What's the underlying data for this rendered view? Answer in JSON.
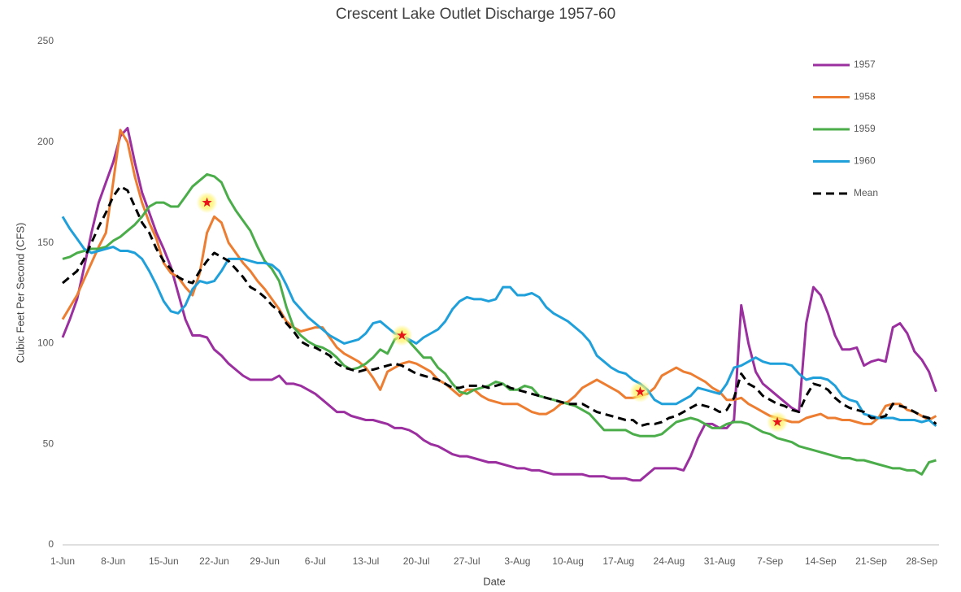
{
  "chart_data": {
    "type": "line",
    "title": "Crescent Lake Outlet Discharge 1957-60",
    "x_label": "Date",
    "y_label": "Cubic Feet Per Second (CFS)",
    "categories": [
      "1-Jun",
      null,
      null,
      null,
      null,
      null,
      null,
      "8-Jun",
      null,
      null,
      null,
      null,
      null,
      null,
      "15-Jun",
      null,
      null,
      null,
      null,
      null,
      null,
      "22-Jun",
      null,
      null,
      null,
      null,
      null,
      null,
      "29-Jun",
      null,
      null,
      null,
      null,
      null,
      null,
      "6-Jul",
      null,
      null,
      null,
      null,
      null,
      null,
      "13-Jul",
      null,
      null,
      null,
      null,
      null,
      null,
      "20-Jul",
      null,
      null,
      null,
      null,
      null,
      null,
      "27-Jul",
      null,
      null,
      null,
      null,
      null,
      null,
      "3-Aug",
      null,
      null,
      null,
      null,
      null,
      null,
      "10-Aug",
      null,
      null,
      null,
      null,
      null,
      null,
      "17-Aug",
      null,
      null,
      null,
      null,
      null,
      null,
      "24-Aug",
      null,
      null,
      null,
      null,
      null,
      null,
      "31-Aug",
      null,
      null,
      null,
      null,
      null,
      null,
      "7-Sep",
      null,
      null,
      null,
      null,
      null,
      null,
      "14-Sep",
      null,
      null,
      null,
      null,
      null,
      null,
      "21-Sep",
      null,
      null,
      null,
      null,
      null,
      null,
      "28-Sep",
      null,
      null
    ],
    "series": [
      {
        "name": "1957",
        "color": "#9b2fa0",
        "values": [
          103,
          112,
          122,
          138,
          155,
          170,
          180,
          190,
          203,
          207,
          190,
          175,
          165,
          155,
          147,
          138,
          125,
          112,
          104,
          104,
          103,
          97,
          94,
          90,
          87,
          84,
          82,
          82,
          82,
          82,
          84,
          80,
          80,
          79,
          77,
          75,
          72,
          69,
          66,
          66,
          64,
          63,
          62,
          62,
          61,
          60,
          58,
          58,
          57,
          55,
          52,
          50,
          49,
          47,
          45,
          44,
          44,
          43,
          42,
          41,
          41,
          40,
          39,
          38,
          38,
          37,
          37,
          36,
          35,
          35,
          35,
          35,
          35,
          34,
          34,
          34,
          33,
          33,
          33,
          32,
          32,
          35,
          38,
          38,
          38,
          38,
          37,
          44,
          53,
          60,
          60,
          58,
          58,
          62,
          119,
          100,
          86,
          80,
          77,
          74,
          71,
          68,
          66,
          110,
          128,
          124,
          115,
          104,
          97,
          97,
          98,
          89,
          91,
          92,
          91,
          108,
          110,
          105,
          96,
          92,
          86,
          76
        ]
      },
      {
        "name": "1958",
        "color": "#ed7d31",
        "values": [
          112,
          118,
          124,
          132,
          140,
          148,
          155,
          180,
          206,
          200,
          183,
          170,
          160,
          152,
          140,
          135,
          133,
          128,
          124,
          135,
          155,
          163,
          160,
          150,
          145,
          140,
          136,
          131,
          127,
          122,
          117,
          111,
          108,
          106,
          107,
          108,
          108,
          103,
          98,
          95,
          93,
          91,
          88,
          83,
          77,
          86,
          88,
          90,
          91,
          90,
          88,
          86,
          82,
          80,
          77,
          74,
          77,
          77,
          74,
          72,
          71,
          70,
          70,
          70,
          68,
          66,
          65,
          65,
          67,
          70,
          71,
          74,
          78,
          80,
          82,
          80,
          78,
          76,
          73,
          73,
          74,
          75,
          78,
          84,
          86,
          88,
          86,
          85,
          83,
          81,
          78,
          76,
          72,
          72,
          73,
          70,
          68,
          66,
          64,
          63,
          62,
          61,
          61,
          63,
          64,
          65,
          63,
          63,
          62,
          62,
          61,
          60,
          60,
          63,
          69,
          70,
          70,
          67,
          66,
          64,
          62,
          64
        ]
      },
      {
        "name": "1959",
        "color": "#4aad4a",
        "values": [
          142,
          143,
          145,
          146,
          147,
          147,
          148,
          151,
          153,
          156,
          159,
          163,
          168,
          170,
          170,
          168,
          168,
          173,
          178,
          181,
          184,
          183,
          180,
          172,
          166,
          161,
          156,
          148,
          141,
          137,
          131,
          118,
          108,
          104,
          101,
          99,
          98,
          96,
          93,
          89,
          87,
          88,
          90,
          93,
          97,
          95,
          102,
          104,
          101,
          97,
          93,
          93,
          88,
          85,
          80,
          76,
          75,
          77,
          78,
          79,
          81,
          80,
          77,
          77,
          79,
          78,
          74,
          73,
          72,
          71,
          70,
          69,
          67,
          65,
          61,
          57,
          57,
          57,
          57,
          55,
          54,
          54,
          54,
          55,
          58,
          61,
          62,
          63,
          62,
          60,
          58,
          58,
          60,
          61,
          61,
          60,
          58,
          56,
          55,
          53,
          52,
          51,
          49,
          48,
          47,
          46,
          45,
          44,
          43,
          43,
          42,
          42,
          41,
          40,
          39,
          38,
          38,
          37,
          37,
          35,
          41,
          42
        ]
      },
      {
        "name": "1960",
        "color": "#1fa0db",
        "values": [
          163,
          157,
          152,
          147,
          145,
          146,
          147,
          148,
          146,
          146,
          145,
          142,
          136,
          129,
          121,
          116,
          115,
          119,
          127,
          131,
          130,
          131,
          136,
          142,
          142,
          142,
          141,
          140,
          140,
          139,
          136,
          129,
          121,
          117,
          113,
          110,
          107,
          104,
          102,
          100,
          101,
          102,
          105,
          110,
          111,
          108,
          105,
          104,
          102,
          100,
          103,
          105,
          107,
          111,
          117,
          121,
          123,
          122,
          122,
          121,
          122,
          128,
          128,
          124,
          124,
          125,
          123,
          118,
          115,
          113,
          111,
          108,
          105,
          101,
          94,
          91,
          88,
          86,
          85,
          82,
          80,
          77,
          72,
          70,
          70,
          70,
          72,
          74,
          78,
          77,
          76,
          75,
          80,
          88,
          89,
          91,
          93,
          91,
          90,
          90,
          90,
          89,
          85,
          82,
          83,
          83,
          82,
          79,
          74,
          72,
          71,
          65,
          64,
          63,
          63,
          63,
          62,
          62,
          62,
          61,
          62,
          59
        ]
      },
      {
        "name": "Mean",
        "color": "#000000",
        "dashed": true,
        "values": [
          130,
          133,
          136,
          142,
          150,
          158,
          165,
          173,
          178,
          176,
          168,
          160,
          155,
          147,
          141,
          137,
          133,
          131,
          130,
          136,
          141,
          145,
          143,
          141,
          137,
          133,
          128,
          126,
          123,
          119,
          116,
          110,
          106,
          101,
          99,
          98,
          96,
          94,
          90,
          88,
          87,
          86,
          87,
          87,
          88,
          89,
          90,
          89,
          87,
          85,
          84,
          83,
          82,
          80,
          78,
          78,
          79,
          79,
          79,
          78,
          79,
          80,
          78,
          77,
          76,
          75,
          74,
          73,
          72,
          71,
          70,
          70,
          70,
          68,
          66,
          65,
          64,
          63,
          62,
          62,
          59,
          60,
          60,
          61,
          63,
          64,
          66,
          68,
          70,
          69,
          68,
          66,
          67,
          73,
          85,
          80,
          78,
          74,
          72,
          70,
          69,
          67,
          66,
          74,
          80,
          79,
          77,
          73,
          70,
          68,
          67,
          66,
          63,
          63,
          64,
          70,
          69,
          68,
          66,
          64,
          63,
          60
        ]
      }
    ],
    "markers": [
      {
        "day": 20,
        "value": 170
      },
      {
        "day": 47,
        "value": 104
      },
      {
        "day": 80,
        "value": 76
      },
      {
        "day": 99,
        "value": 61
      }
    ],
    "ylim": [
      0,
      250
    ],
    "yticks": [
      0,
      50,
      100,
      150,
      200,
      250
    ],
    "grid": false,
    "legend": "right"
  }
}
